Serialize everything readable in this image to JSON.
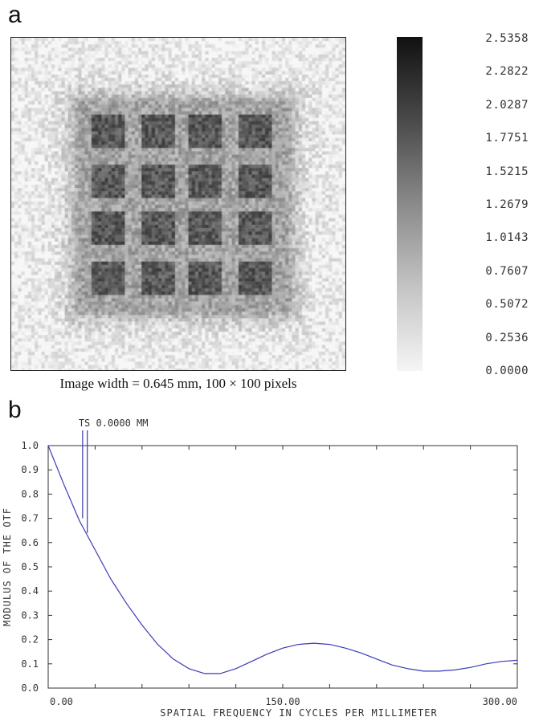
{
  "panels": {
    "a_label": "a",
    "b_label": "b"
  },
  "psf_image": {
    "caption": "Image width = 0.645 mm, 100 × 100 pixels",
    "grid_rows": 4,
    "grid_cols": 4
  },
  "colorbar": {
    "ticks": [
      "2.5358",
      "2.2822",
      "2.0287",
      "1.7751",
      "1.5215",
      "1.2679",
      "1.0143",
      "0.7607",
      "0.5072",
      "0.2536",
      "0.0000"
    ]
  },
  "chart_data": {
    "type": "line",
    "title": "",
    "xlabel": "SPATIAL FREQUENCY IN CYCLES PER MILLIMETER",
    "ylabel": "MODULUS OF THE OTF",
    "xlim": [
      0,
      300
    ],
    "ylim": [
      0,
      1.0
    ],
    "x_tick_labels": [
      "0.00",
      "150.00",
      "300.00"
    ],
    "y_tick_labels": [
      "1.0",
      "0.9",
      "0.8",
      "0.7",
      "0.6",
      "0.5",
      "0.4",
      "0.3",
      "0.2",
      "0.1",
      "0.0"
    ],
    "legend": "TS 0.0000 MM",
    "legend_marker_x": [
      22,
      25
    ],
    "series": [
      {
        "color": "#3a3ab8",
        "x": [
          0,
          10,
          20,
          30,
          40,
          50,
          60,
          70,
          80,
          90,
          100,
          110,
          120,
          130,
          140,
          150,
          160,
          170,
          180,
          190,
          200,
          210,
          220,
          230,
          240,
          250,
          260,
          270,
          280,
          290,
          300
        ],
        "y": [
          1.0,
          0.84,
          0.69,
          0.57,
          0.45,
          0.35,
          0.26,
          0.18,
          0.12,
          0.08,
          0.06,
          0.06,
          0.08,
          0.11,
          0.14,
          0.165,
          0.18,
          0.185,
          0.18,
          0.165,
          0.145,
          0.12,
          0.095,
          0.08,
          0.07,
          0.07,
          0.075,
          0.085,
          0.1,
          0.11,
          0.115
        ]
      }
    ]
  }
}
